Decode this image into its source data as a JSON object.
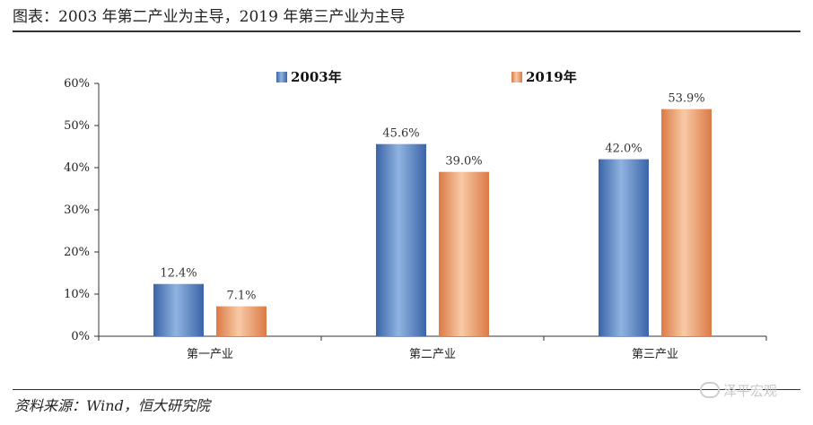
{
  "header": {
    "title": "图表：2003 年第二产业为主导，2019 年第三产业为主导"
  },
  "footer": {
    "source": "资料来源：Wind，恒大研究院",
    "watermark": "泽平宏观"
  },
  "colors": {
    "series_2003_light": "#8fb3e0",
    "series_2003_dark": "#3b64a8",
    "series_2019_light": "#f8caa6",
    "series_2019_dark": "#dc7a45",
    "axis": "#333333"
  },
  "chart_data": {
    "type": "bar",
    "title": "",
    "xlabel": "",
    "ylabel": "",
    "categories": [
      "第一产业",
      "第二产业",
      "第三产业"
    ],
    "series": [
      {
        "name": "2003年",
        "values": [
          12.4,
          45.6,
          42.0
        ],
        "labels": [
          "12.4%",
          "45.6%",
          "42.0%"
        ]
      },
      {
        "name": "2019年",
        "values": [
          7.1,
          39.0,
          53.9
        ],
        "labels": [
          "7.1%",
          "39.0%",
          "53.9%"
        ]
      }
    ],
    "ylim": [
      0,
      60
    ],
    "yticks": [
      0,
      10,
      20,
      30,
      40,
      50,
      60
    ],
    "ytick_labels": [
      "0%",
      "10%",
      "20%",
      "30%",
      "40%",
      "50%",
      "60%"
    ],
    "grid": false,
    "legend_position": "top-center"
  }
}
